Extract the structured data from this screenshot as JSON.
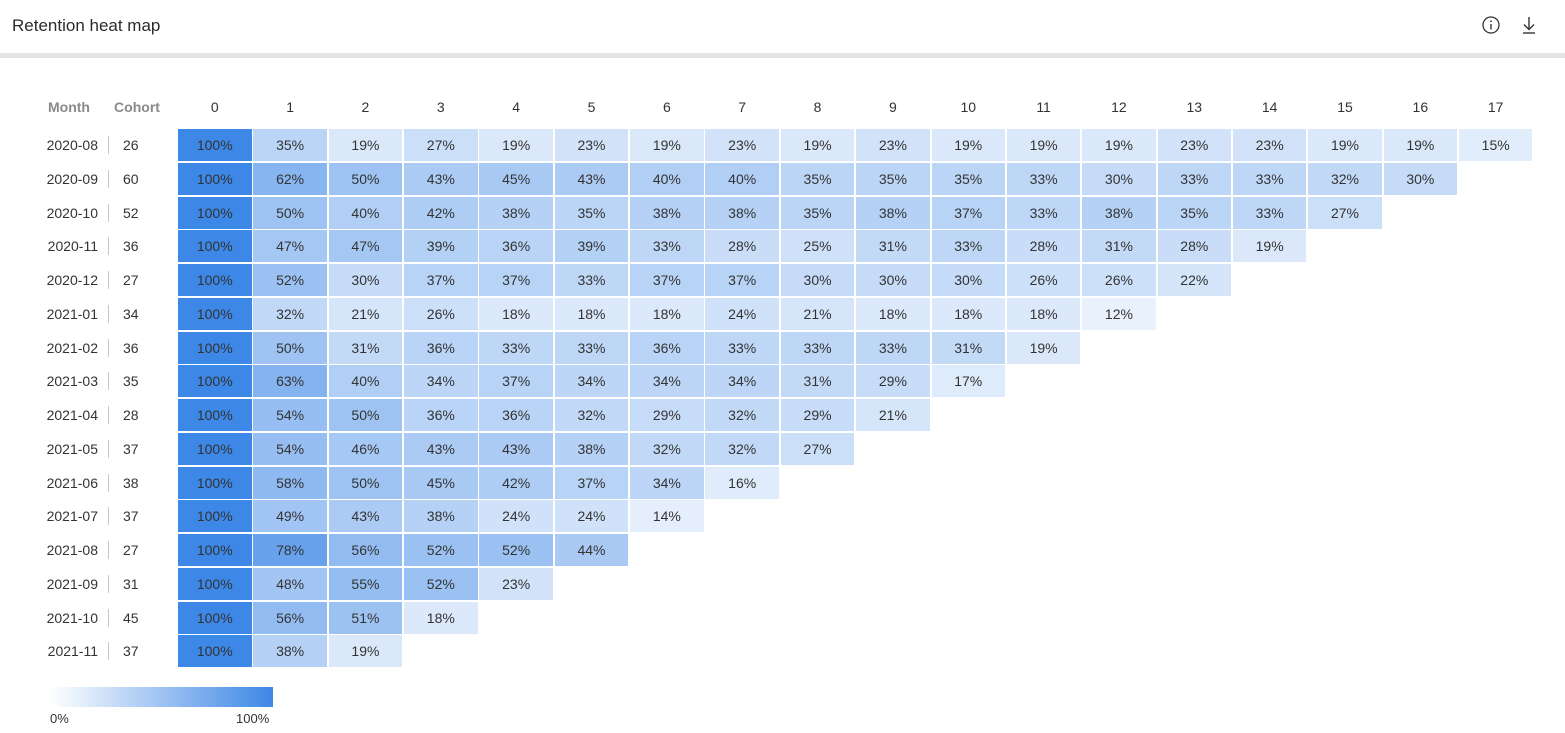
{
  "header": {
    "title": "Retention heat map",
    "info_icon": "info-icon",
    "download_icon": "download-icon"
  },
  "chart_data": {
    "type": "heatmap",
    "column_headers": {
      "month": "Month",
      "cohort": "Cohort"
    },
    "columns": [
      "0",
      "1",
      "2",
      "3",
      "4",
      "5",
      "6",
      "7",
      "8",
      "9",
      "10",
      "11",
      "12",
      "13",
      "14",
      "15",
      "16",
      "17"
    ],
    "color_low": "#ffffff",
    "color_high": "#3d87e6",
    "rows": [
      {
        "month": "2020-08",
        "cohort": "26",
        "values": [
          100,
          35,
          19,
          27,
          19,
          23,
          19,
          23,
          19,
          23,
          19,
          19,
          19,
          23,
          23,
          19,
          19,
          15
        ]
      },
      {
        "month": "2020-09",
        "cohort": "60",
        "values": [
          100,
          62,
          50,
          43,
          45,
          43,
          40,
          40,
          35,
          35,
          35,
          33,
          30,
          33,
          33,
          32,
          30
        ]
      },
      {
        "month": "2020-10",
        "cohort": "52",
        "values": [
          100,
          50,
          40,
          42,
          38,
          35,
          38,
          38,
          35,
          38,
          37,
          33,
          38,
          35,
          33,
          27
        ]
      },
      {
        "month": "2020-11",
        "cohort": "36",
        "values": [
          100,
          47,
          47,
          39,
          36,
          39,
          33,
          28,
          25,
          31,
          33,
          28,
          31,
          28,
          19
        ]
      },
      {
        "month": "2020-12",
        "cohort": "27",
        "values": [
          100,
          52,
          30,
          37,
          37,
          33,
          37,
          37,
          30,
          30,
          30,
          26,
          26,
          22
        ]
      },
      {
        "month": "2021-01",
        "cohort": "34",
        "values": [
          100,
          32,
          21,
          26,
          18,
          18,
          18,
          24,
          21,
          18,
          18,
          18,
          12
        ]
      },
      {
        "month": "2021-02",
        "cohort": "36",
        "values": [
          100,
          50,
          31,
          36,
          33,
          33,
          36,
          33,
          33,
          33,
          31,
          19
        ]
      },
      {
        "month": "2021-03",
        "cohort": "35",
        "values": [
          100,
          63,
          40,
          34,
          37,
          34,
          34,
          34,
          31,
          29,
          17
        ]
      },
      {
        "month": "2021-04",
        "cohort": "28",
        "values": [
          100,
          54,
          50,
          36,
          36,
          32,
          29,
          32,
          29,
          21
        ]
      },
      {
        "month": "2021-05",
        "cohort": "37",
        "values": [
          100,
          54,
          46,
          43,
          43,
          38,
          32,
          32,
          27
        ]
      },
      {
        "month": "2021-06",
        "cohort": "38",
        "values": [
          100,
          58,
          50,
          45,
          42,
          37,
          34,
          16
        ]
      },
      {
        "month": "2021-07",
        "cohort": "37",
        "values": [
          100,
          49,
          43,
          38,
          24,
          24,
          14
        ]
      },
      {
        "month": "2021-08",
        "cohort": "27",
        "values": [
          100,
          78,
          56,
          52,
          52,
          44
        ]
      },
      {
        "month": "2021-09",
        "cohort": "31",
        "values": [
          100,
          48,
          55,
          52,
          23
        ]
      },
      {
        "month": "2021-10",
        "cohort": "45",
        "values": [
          100,
          56,
          51,
          18
        ]
      },
      {
        "month": "2021-11",
        "cohort": "37",
        "values": [
          100,
          38,
          19
        ]
      }
    ],
    "legend": {
      "min_label": "0%",
      "max_label": "100%",
      "min": 0,
      "max": 100
    }
  }
}
